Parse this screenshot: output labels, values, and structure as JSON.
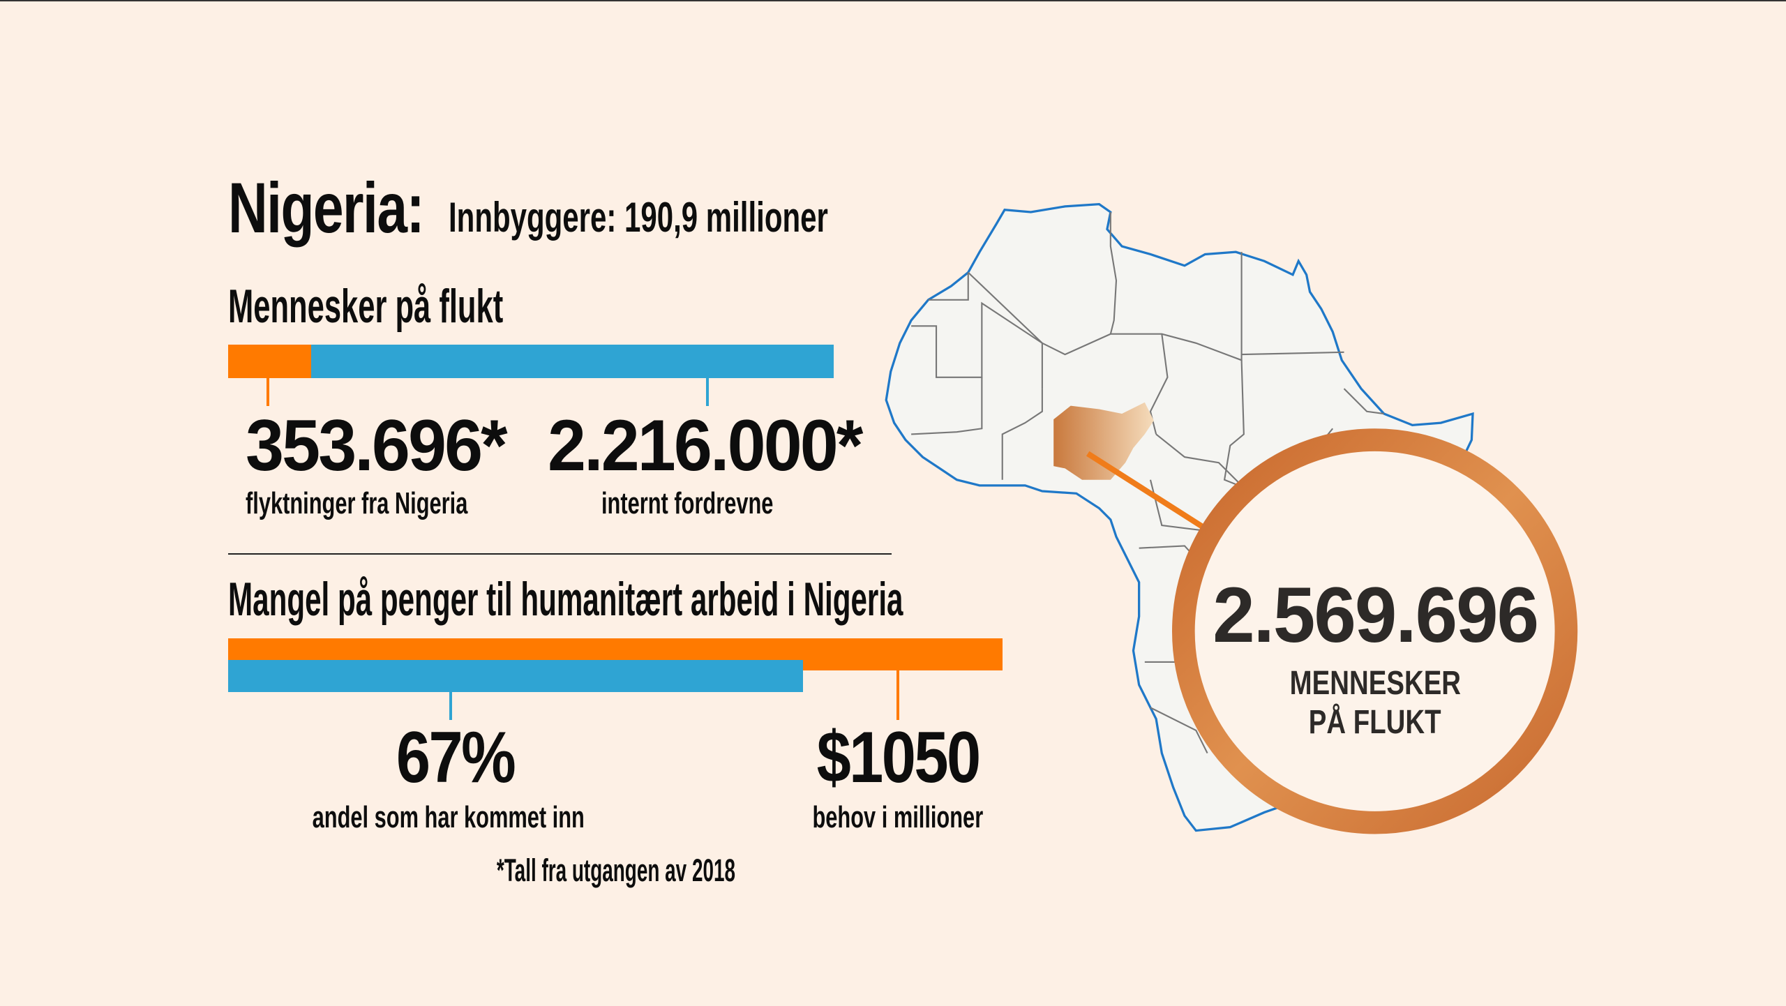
{
  "header": {
    "country": "Nigeria:",
    "population": "Innbyggere: 190,9 millioner"
  },
  "refugees_section": {
    "title": "Mennesker på flukt",
    "refugees": {
      "value": "353.696*",
      "label": "flyktninger fra Nigeria",
      "number": 353696
    },
    "idps": {
      "value": "2.216.000*",
      "label": "internt fordrevne",
      "number": 2216000
    }
  },
  "funding_section": {
    "title": "Mangel på penger til humanitært arbeid i Nigeria",
    "funded": {
      "value": "67%",
      "label": "andel som har kommet inn",
      "fraction": 0.67
    },
    "need": {
      "value": "$1050",
      "label": "behov i millioner"
    }
  },
  "footnote": "*Tall fra utgangen av 2018",
  "callout": {
    "total": "2.569.696",
    "line1": "MENNESKER",
    "line2": "PÅ FLUKT"
  },
  "colors": {
    "orange": "#ff7a00",
    "blue": "#2fa4d3",
    "background": "#fdf0e5",
    "ring": "#d0773a"
  }
}
